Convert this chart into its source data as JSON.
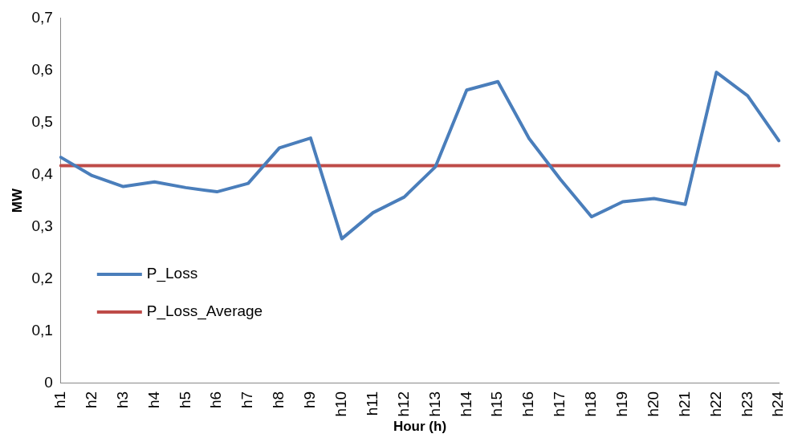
{
  "chart_data": {
    "type": "line",
    "xlabel": "Hour (h)",
    "ylabel": "MW",
    "categories": [
      "h1",
      "h2",
      "h3",
      "h4",
      "h5",
      "h6",
      "h7",
      "h8",
      "h9",
      "h10",
      "h11",
      "h12",
      "h13",
      "h14",
      "h15",
      "h16",
      "h17",
      "h18",
      "h19",
      "h20",
      "h21",
      "h22",
      "h23",
      "h24"
    ],
    "series": [
      {
        "name": "P_Loss",
        "color": "#4a7ebb",
        "values": [
          0.433,
          0.398,
          0.377,
          0.386,
          0.375,
          0.367,
          0.383,
          0.451,
          0.47,
          0.277,
          0.327,
          0.357,
          0.415,
          0.562,
          0.578,
          0.469,
          0.391,
          0.319,
          0.348,
          0.354,
          0.343,
          0.596,
          0.551,
          0.465
        ]
      },
      {
        "name": "P_Loss_Average",
        "color": "#be4b48",
        "values": [
          0.417,
          0.417,
          0.417,
          0.417,
          0.417,
          0.417,
          0.417,
          0.417,
          0.417,
          0.417,
          0.417,
          0.417,
          0.417,
          0.417,
          0.417,
          0.417,
          0.417,
          0.417,
          0.417,
          0.417,
          0.417,
          0.417,
          0.417,
          0.417
        ]
      }
    ],
    "ylim": [
      0,
      0.7
    ],
    "yticks": [
      0,
      {
        "value": 0.1,
        "label": "0,1"
      },
      {
        "value": 0.2,
        "label": "0,2"
      },
      {
        "value": 0.3,
        "label": "0,3"
      },
      {
        "value": 0.4,
        "label": "0,4"
      },
      {
        "value": 0.5,
        "label": "0,5"
      },
      {
        "value": 0.6,
        "label": "0,6"
      },
      {
        "value": 0.7,
        "label": "0,7"
      }
    ],
    "grid": false,
    "legend": "bottom left",
    "marker": "none",
    "line_style": "solid"
  }
}
